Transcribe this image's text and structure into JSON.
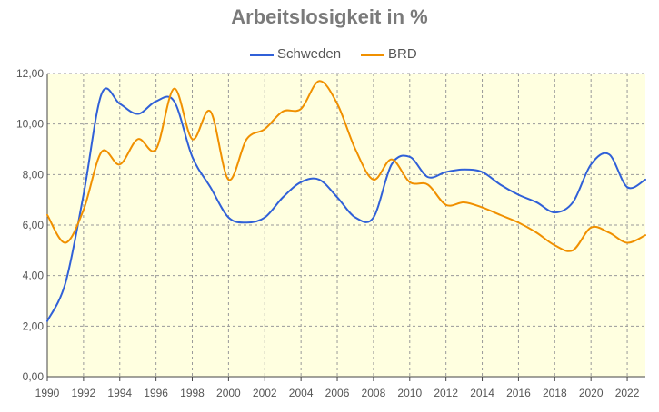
{
  "chart_data": {
    "type": "line",
    "title": "Arbeitslosigkeit in %",
    "xlabel": "",
    "ylabel": "",
    "xlim": [
      1990,
      2023
    ],
    "ylim": [
      0,
      12
    ],
    "grid": true,
    "legend_position": "top-center",
    "x_ticks": [
      "1990",
      "1992",
      "1994",
      "1996",
      "1998",
      "2000",
      "2002",
      "2004",
      "2006",
      "2008",
      "2010",
      "2012",
      "2014",
      "2016",
      "2018",
      "2020",
      "2022"
    ],
    "y_ticks": [
      "0,00",
      "2,00",
      "4,00",
      "6,00",
      "8,00",
      "10,00",
      "12,00"
    ],
    "series": [
      {
        "name": "Schweden",
        "color": "#3060d8",
        "x": [
          1990,
          1991,
          1992,
          1993,
          1994,
          1995,
          1996,
          1997,
          1998,
          1999,
          2000,
          2001,
          2002,
          2003,
          2004,
          2005,
          2006,
          2007,
          2008,
          2009,
          2010,
          2011,
          2012,
          2013,
          2014,
          2015,
          2016,
          2017,
          2018,
          2019,
          2020,
          2021,
          2022,
          2023
        ],
        "values": [
          2.2,
          3.7,
          7.2,
          11.2,
          10.8,
          10.4,
          10.9,
          10.9,
          8.7,
          7.5,
          6.3,
          6.1,
          6.3,
          7.1,
          7.7,
          7.8,
          7.1,
          6.3,
          6.3,
          8.4,
          8.7,
          7.9,
          8.1,
          8.2,
          8.1,
          7.6,
          7.2,
          6.9,
          6.5,
          6.9,
          8.4,
          8.8,
          7.5,
          7.8
        ]
      },
      {
        "name": "BRD",
        "color": "#f09000",
        "x": [
          1990,
          1991,
          1992,
          1993,
          1994,
          1995,
          1996,
          1997,
          1998,
          1999,
          2000,
          2001,
          2002,
          2003,
          2004,
          2005,
          2006,
          2007,
          2008,
          2009,
          2010,
          2011,
          2012,
          2013,
          2014,
          2015,
          2016,
          2017,
          2018,
          2019,
          2020,
          2021,
          2022,
          2023
        ],
        "values": [
          6.4,
          5.3,
          6.6,
          8.9,
          8.4,
          9.4,
          9.0,
          11.4,
          9.4,
          10.5,
          7.8,
          9.4,
          9.8,
          10.5,
          10.6,
          11.7,
          10.8,
          9.0,
          7.8,
          8.6,
          7.7,
          7.6,
          6.8,
          6.9,
          6.7,
          6.4,
          6.1,
          5.7,
          5.2,
          5.0,
          5.9,
          5.7,
          5.3,
          5.6
        ]
      }
    ]
  }
}
